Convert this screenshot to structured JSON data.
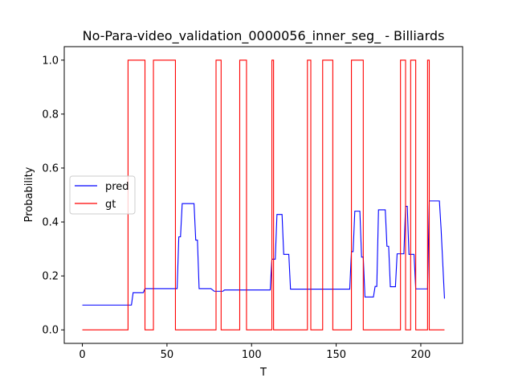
{
  "chart_data": {
    "type": "line",
    "title": "No-Para-video_validation_0000056_inner_seg_ - Billiards",
    "xlabel": "T",
    "ylabel": "Probability",
    "xlim": [
      -10.7,
      224.7
    ],
    "ylim": [
      -0.05,
      1.05
    ],
    "xticks": [
      0,
      50,
      100,
      150,
      200
    ],
    "yticks": [
      0.0,
      0.2,
      0.4,
      0.6,
      0.8,
      1.0
    ],
    "xtick_labels": [
      "0",
      "50",
      "100",
      "150",
      "200"
    ],
    "ytick_labels": [
      "0.0",
      "0.2",
      "0.4",
      "0.6",
      "0.8",
      "1.0"
    ],
    "grid": false,
    "legend": {
      "position": "center-left",
      "entries": [
        "pred",
        "gt"
      ]
    },
    "series": [
      {
        "name": "pred",
        "color": "#0000ff",
        "x": [
          0,
          29,
          30,
          36,
          37,
          56,
          57,
          58,
          59,
          66,
          67,
          68,
          69,
          76,
          78,
          83,
          84,
          111,
          112,
          114,
          115,
          118,
          119,
          122,
          123,
          158,
          159,
          160,
          161,
          164,
          165,
          166,
          167,
          172,
          173,
          174,
          175,
          179,
          180,
          181,
          182,
          185,
          186,
          190,
          191,
          192,
          193,
          196,
          197,
          204,
          205,
          211,
          212,
          214
        ],
        "y": [
          0.092,
          0.092,
          0.138,
          0.138,
          0.153,
          0.153,
          0.345,
          0.345,
          0.468,
          0.468,
          0.333,
          0.333,
          0.153,
          0.153,
          0.143,
          0.143,
          0.148,
          0.148,
          0.262,
          0.262,
          0.428,
          0.428,
          0.28,
          0.28,
          0.151,
          0.151,
          0.29,
          0.29,
          0.44,
          0.44,
          0.27,
          0.27,
          0.122,
          0.122,
          0.161,
          0.161,
          0.445,
          0.445,
          0.31,
          0.31,
          0.16,
          0.16,
          0.282,
          0.282,
          0.458,
          0.458,
          0.28,
          0.28,
          0.152,
          0.152,
          0.478,
          0.478,
          0.373,
          0.116
        ]
      },
      {
        "name": "gt",
        "color": "#ff0000",
        "x": [
          0,
          27,
          27,
          37,
          37,
          42,
          42,
          55,
          55,
          79,
          79,
          82,
          82,
          93,
          93,
          97,
          97,
          112,
          112,
          113,
          113,
          133,
          133,
          135,
          135,
          142,
          142,
          148,
          148,
          159,
          159,
          166,
          166,
          188,
          188,
          191,
          191,
          194,
          194,
          197,
          197,
          204,
          204,
          205,
          205,
          214
        ],
        "y": [
          0,
          0,
          1,
          1,
          0,
          0,
          1,
          1,
          0,
          0,
          1,
          1,
          0,
          0,
          1,
          1,
          0,
          0,
          1,
          1,
          0,
          0,
          1,
          1,
          0,
          0,
          1,
          1,
          0,
          0,
          1,
          1,
          0,
          0,
          1,
          1,
          0,
          0,
          1,
          1,
          0,
          0,
          1,
          1,
          0,
          0
        ]
      }
    ]
  }
}
